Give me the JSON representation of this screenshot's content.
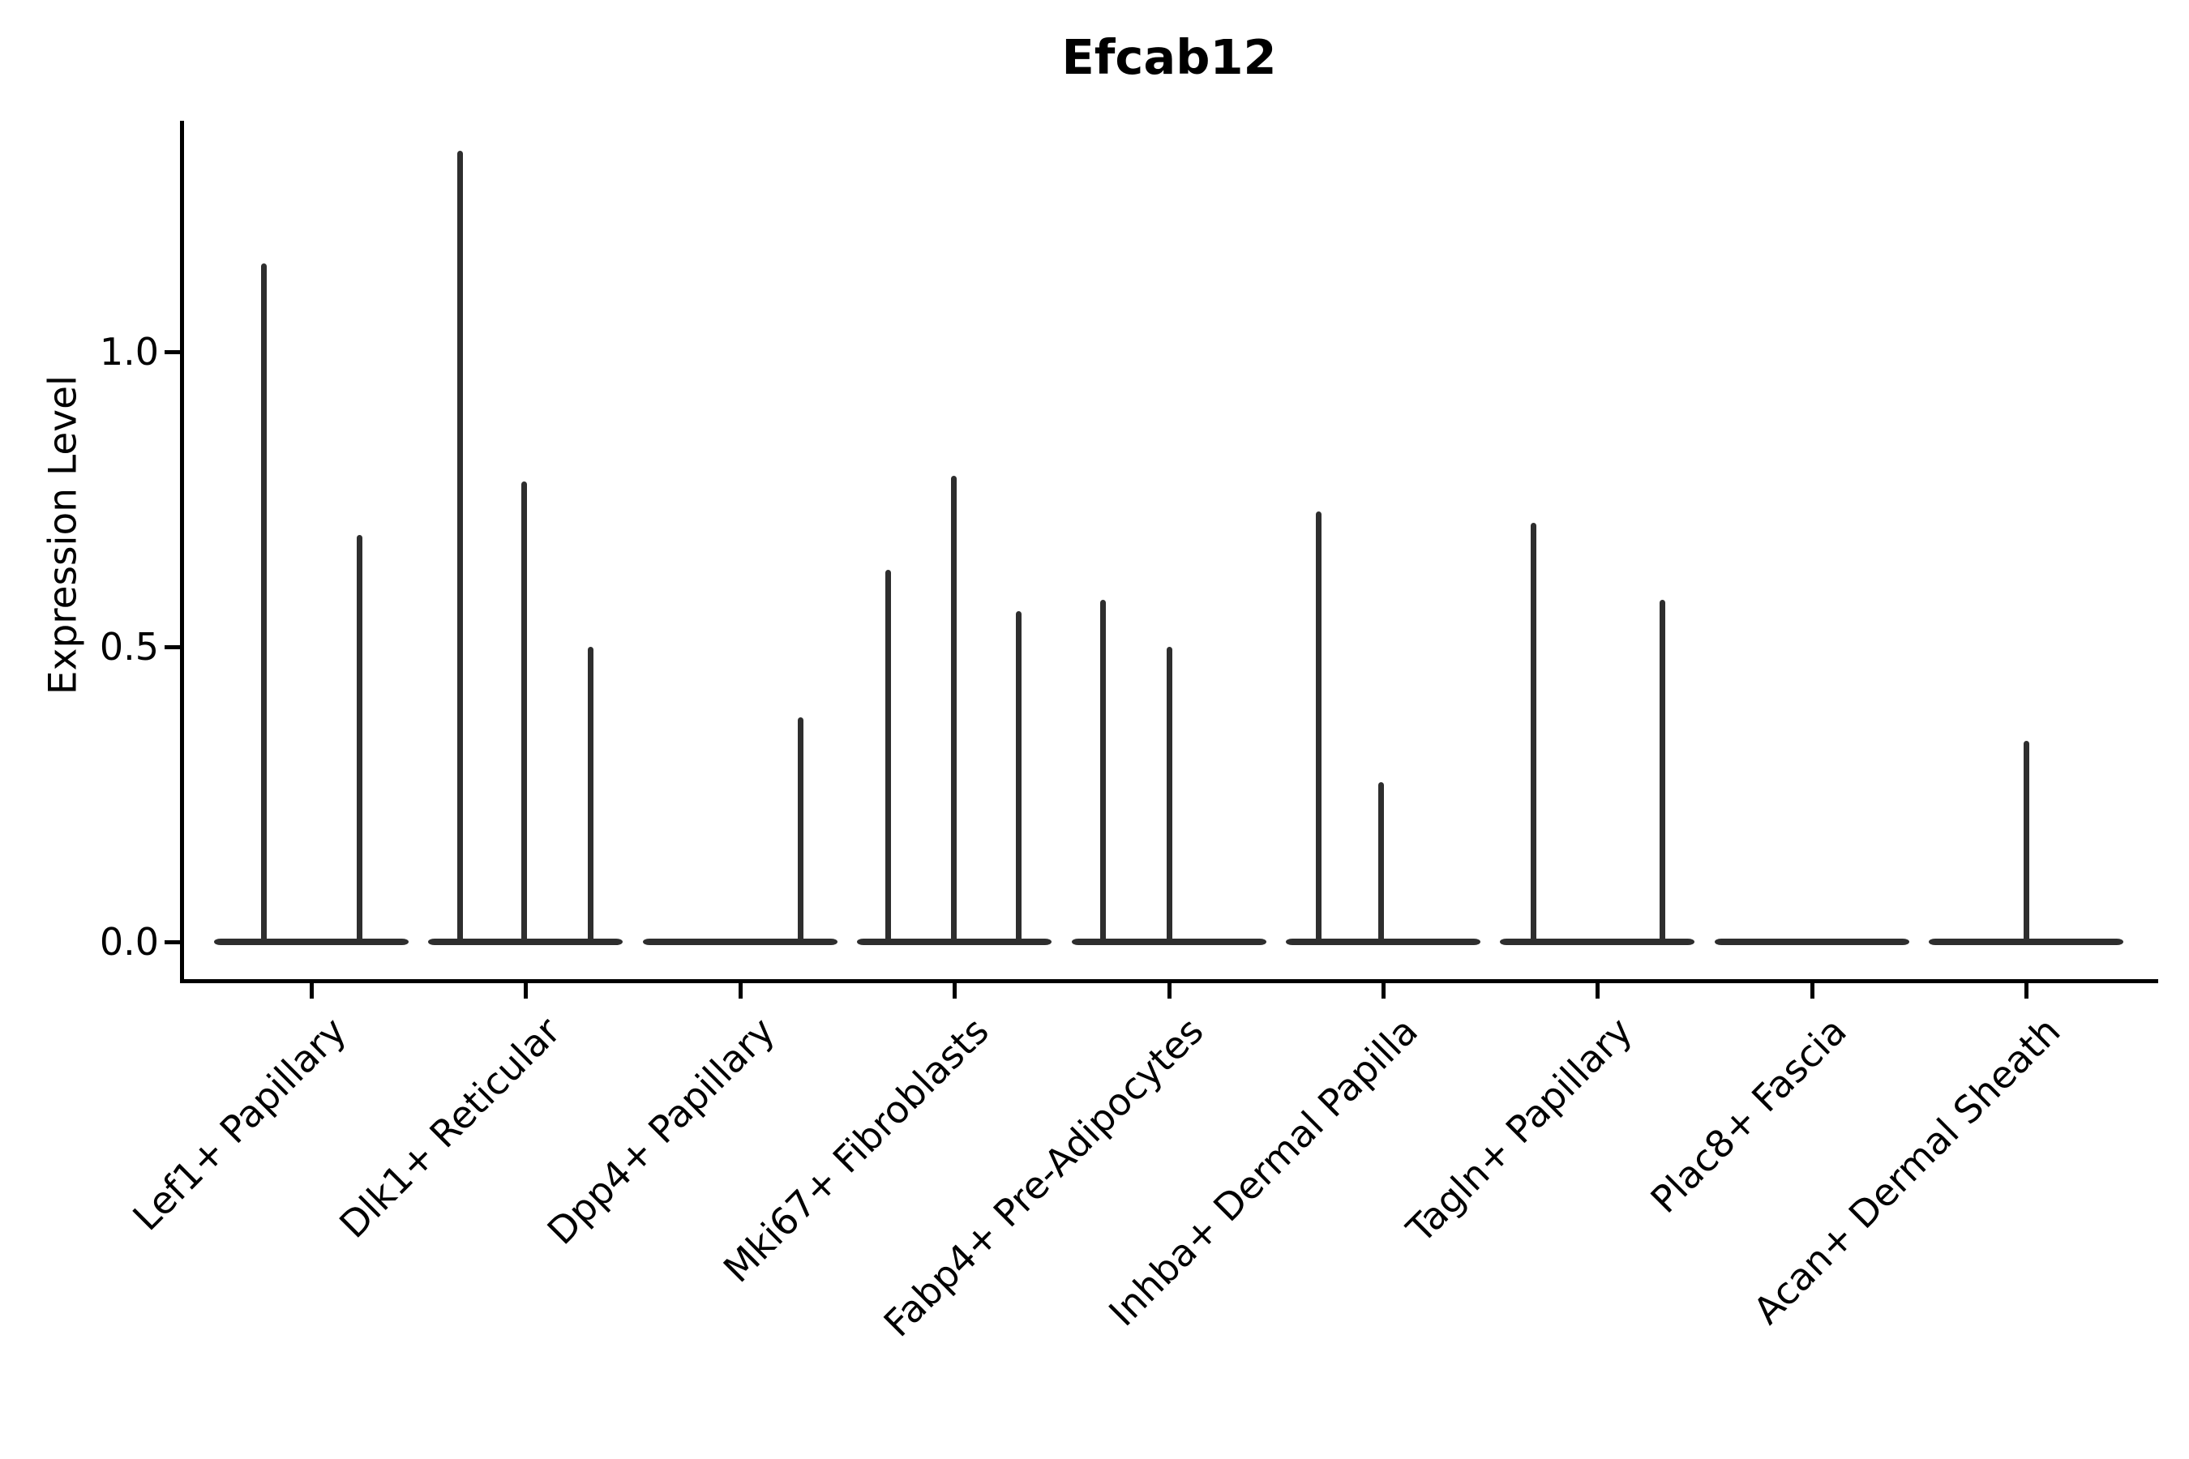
{
  "chart_data": {
    "type": "violin",
    "title": "Efcab12",
    "xlabel": "",
    "ylabel": "Expression Level",
    "legend": "none",
    "grid": false,
    "spines": [
      "left",
      "bottom"
    ],
    "background": "#ffffff",
    "line_color": "#2e2e2e",
    "axis_color": "#000000",
    "ylim": [
      -0.06,
      1.4
    ],
    "yticks": [
      {
        "label": "0.0",
        "value": 0.0
      },
      {
        "label": "0.5",
        "value": 0.5
      },
      {
        "label": "1.0",
        "value": 1.0
      }
    ],
    "categories": [
      "Lef1+ Papillary",
      "Dlk1+ Reticular",
      "Dpp4+ Papillary",
      "Mki67+ Fibroblasts",
      "Fabp4+ Pre-Adipocytes",
      "Inhba+ Dermal Papilla",
      "Tagln+ Papillary",
      "Plac8+ Fascia",
      "Acan+ Dermal Sheath"
    ],
    "series": [
      {
        "category": "Lef1+ Papillary",
        "violins": [
          {
            "dodge": -59,
            "max": 1.15
          },
          {
            "dodge": 59,
            "max": 0.69
          }
        ]
      },
      {
        "category": "Dlk1+ Reticular",
        "violins": [
          {
            "dodge": -81,
            "max": 1.34
          },
          {
            "dodge": -2,
            "max": 0.78
          },
          {
            "dodge": 80,
            "max": 0.5
          }
        ]
      },
      {
        "category": "Dpp4+ Papillary",
        "violins": [
          {
            "dodge": 75,
            "max": 0.38
          }
        ]
      },
      {
        "category": "Mki67+ Fibroblasts",
        "violins": [
          {
            "dodge": -82,
            "max": 0.63
          },
          {
            "dodge": -1,
            "max": 0.79
          },
          {
            "dodge": 79,
            "max": 0.56
          }
        ]
      },
      {
        "category": "Fabp4+ Pre-Adipocytes",
        "violins": [
          {
            "dodge": -81,
            "max": 0.58
          },
          {
            "dodge": 1,
            "max": 0.5
          }
        ]
      },
      {
        "category": "Inhba+ Dermal Papilla",
        "violins": [
          {
            "dodge": -80,
            "max": 0.73
          },
          {
            "dodge": -3,
            "max": 0.27
          }
        ]
      },
      {
        "category": "Tagln+ Papillary",
        "violins": [
          {
            "dodge": -79,
            "max": 0.71
          },
          {
            "dodge": 80,
            "max": 0.58
          }
        ]
      },
      {
        "category": "Plac8+ Fascia",
        "violins": []
      },
      {
        "category": "Acan+ Dermal Sheath",
        "violins": [
          {
            "dodge": 0,
            "max": 0.34
          }
        ]
      }
    ],
    "note": "All violins have a flat wide base at expression level 0 with a thin density spike up to the max value; Plac8+ Fascia has zero expression (flat base only)."
  }
}
